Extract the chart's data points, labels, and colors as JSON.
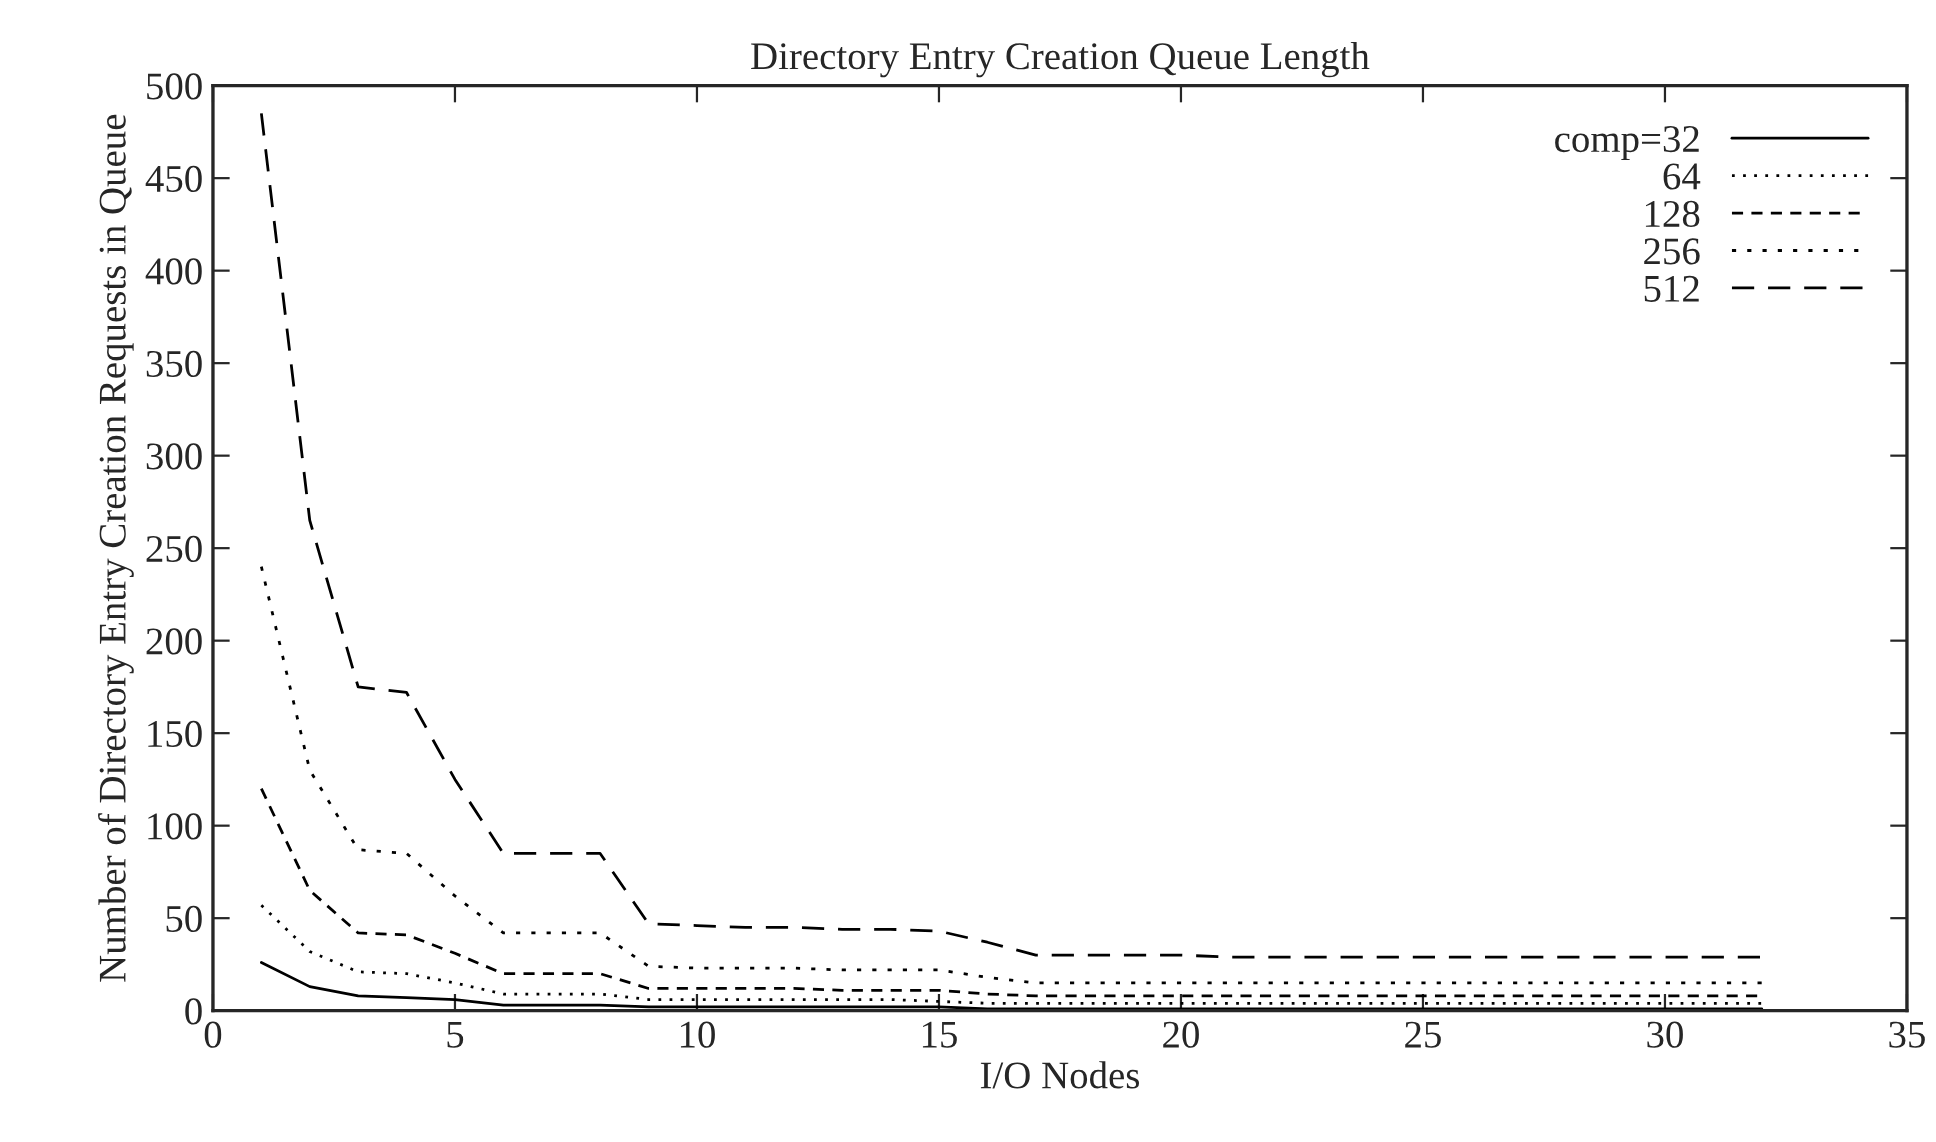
{
  "chart_data": {
    "type": "line",
    "title": "Directory Entry Creation Queue Length",
    "xlabel": "I/O Nodes",
    "ylabel": "Number of Directory Entry Creation Requests in Queue",
    "x": [
      1,
      2,
      3,
      4,
      5,
      6,
      7,
      8,
      9,
      10,
      11,
      12,
      13,
      14,
      15,
      16,
      17,
      18,
      19,
      20,
      21,
      22,
      23,
      24,
      25,
      26,
      27,
      28,
      29,
      30,
      31,
      32
    ],
    "xlim": [
      0,
      35
    ],
    "xticks": [
      0,
      5,
      10,
      15,
      20,
      25,
      30,
      35
    ],
    "ylim": [
      0,
      500
    ],
    "yticks": [
      0,
      50,
      100,
      150,
      200,
      250,
      300,
      350,
      400,
      450,
      500
    ],
    "grid": false,
    "legend": "top right",
    "marker": "none",
    "series": [
      {
        "name": "comp=32",
        "color": "#000000",
        "line_style": "solid",
        "values": [
          26,
          13,
          8,
          7,
          6,
          3,
          3,
          3,
          2,
          2,
          2,
          2,
          2,
          2,
          2,
          1,
          1,
          1,
          1,
          1,
          1,
          1,
          1,
          1,
          1,
          1,
          1,
          1,
          1,
          1,
          1,
          1
        ]
      },
      {
        "name": "64",
        "color": "#000000",
        "line_style": "dotted",
        "values": [
          57,
          32,
          21,
          20,
          15,
          9,
          9,
          9,
          6,
          6,
          6,
          6,
          6,
          6,
          5,
          4,
          4,
          4,
          4,
          4,
          4,
          4,
          4,
          4,
          4,
          4,
          4,
          4,
          4,
          4,
          4,
          4
        ]
      },
      {
        "name": "128",
        "color": "#000000",
        "line_style": "dashed",
        "values": [
          120,
          65,
          42,
          41,
          31,
          20,
          20,
          20,
          12,
          12,
          12,
          12,
          11,
          11,
          11,
          9,
          8,
          8,
          8,
          8,
          8,
          8,
          8,
          8,
          8,
          8,
          8,
          8,
          8,
          8,
          8,
          8
        ]
      },
      {
        "name": "256",
        "color": "#000000",
        "line_style": "dotted",
        "values": [
          240,
          130,
          87,
          85,
          62,
          42,
          42,
          42,
          24,
          23,
          23,
          23,
          22,
          22,
          22,
          18,
          15,
          15,
          15,
          15,
          15,
          15,
          15,
          15,
          15,
          15,
          15,
          15,
          15,
          15,
          15,
          15
        ]
      },
      {
        "name": "512",
        "color": "#000000",
        "line_style": "dashed",
        "values": [
          485,
          265,
          175,
          172,
          125,
          85,
          85,
          85,
          47,
          46,
          45,
          45,
          44,
          44,
          43,
          37,
          30,
          30,
          30,
          30,
          29,
          29,
          29,
          29,
          29,
          29,
          29,
          29,
          29,
          29,
          29,
          29
        ]
      }
    ]
  }
}
